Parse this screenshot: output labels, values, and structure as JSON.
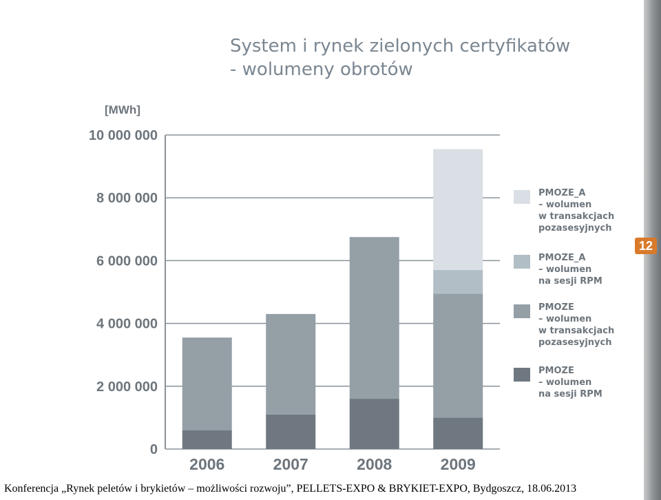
{
  "title_line1": "System i rynek zielonych certyfikatów",
  "title_line2": "- wolumeny obrotów",
  "unit_label": "[MWh]",
  "slide_number": "12",
  "footer_text": "Konferencja „Rynek peletów i brykietów – możliwości rozwoju”, PELLETS-EXPO & BRYKIET-EXPO, Bydgoszcz, 18.06.2013",
  "legend": [
    {
      "name": "PMOZE_A",
      "lines": [
        "– wolumen",
        "w transakcjach",
        "pozasesyjnych"
      ],
      "color": "#d9dfe5"
    },
    {
      "name": "PMOZE_A",
      "lines": [
        "– wolumen",
        "na sesji RPM"
      ],
      "color": "#b1bec6"
    },
    {
      "name": "PMOZE",
      "lines": [
        "– wolumen",
        "w transakcjach",
        "pozasesyjnych"
      ],
      "color": "#949fa6"
    },
    {
      "name": "PMOZE",
      "lines": [
        "– wolumen",
        "na sesji RPM"
      ],
      "color": "#6f7880"
    }
  ],
  "chart_data": {
    "type": "bar",
    "stacked": true,
    "categories": [
      "2006",
      "2007",
      "2008",
      "2009"
    ],
    "series": [
      {
        "name": "PMOZE – wolumen na sesji RPM",
        "color": "#6f7880",
        "values": [
          600000,
          1100000,
          1600000,
          1000000
        ]
      },
      {
        "name": "PMOZE – wolumen w transakcjach pozasesyjnych",
        "color": "#949fa6",
        "values": [
          2950000,
          3200000,
          5150000,
          3950000
        ]
      },
      {
        "name": "PMOZE_A – wolumen na sesji RPM",
        "color": "#b1bec6",
        "values": [
          0,
          0,
          0,
          750000
        ]
      },
      {
        "name": "PMOZE_A – wolumen w transakcjach pozasesyjnych",
        "color": "#d9dfe5",
        "values": [
          0,
          0,
          0,
          3850000
        ]
      }
    ],
    "ylabel": "[MWh]",
    "ylim": [
      0,
      10000000
    ],
    "yticks": [
      0,
      2000000,
      4000000,
      6000000,
      8000000,
      10000000
    ],
    "ytick_labels": [
      "0",
      "2 000 000",
      "4 000 000",
      "6 000 000",
      "8 000 000",
      "10 000 000"
    ],
    "grid": true,
    "legend_position": "right"
  }
}
